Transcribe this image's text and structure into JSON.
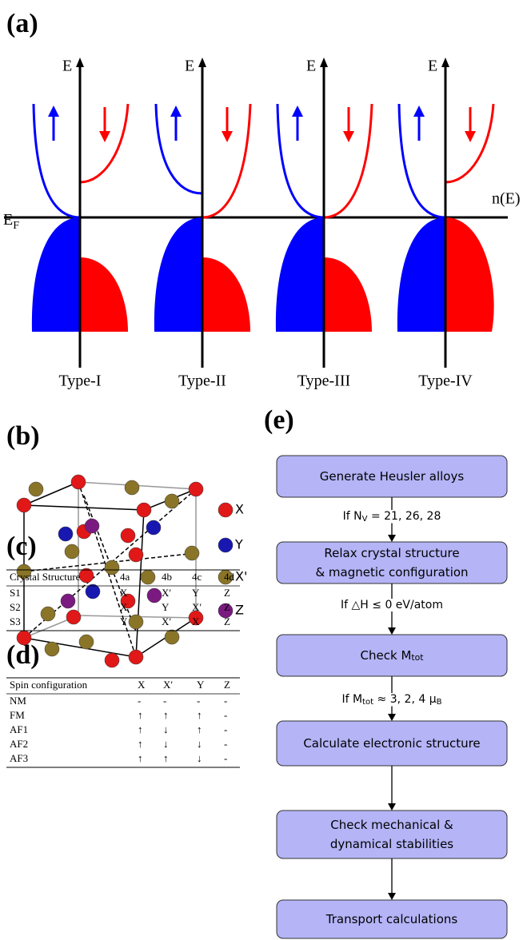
{
  "panel_labels": {
    "a": "(a)",
    "b": "(b)",
    "c": "(c)",
    "d": "(d)",
    "e": "(e)"
  },
  "dos": {
    "energy_axis_label": "E",
    "dos_axis_label": "n(E)",
    "fermi_label": {
      "main": "E",
      "sub": "F"
    },
    "types": [
      "Type-I",
      "Type-II",
      "Type-III",
      "Type-IV"
    ]
  },
  "structure": {
    "legend": [
      "X",
      "Y",
      "X'",
      "Z"
    ]
  },
  "table_c": {
    "header": [
      "Crystal Structure",
      "4a",
      "4b",
      "4c",
      "4d"
    ],
    "rows": [
      [
        "S1",
        "X",
        "X′",
        "Y",
        "Z"
      ],
      [
        "S2",
        "X",
        "Y",
        "X′",
        "Z"
      ],
      [
        "S3",
        "Y",
        "X′",
        "X",
        "Z"
      ]
    ]
  },
  "table_d": {
    "header": [
      "Spin configuration",
      "X",
      "X′",
      "Y",
      "Z"
    ],
    "rows": [
      [
        "NM",
        "-",
        "-",
        "-",
        "-"
      ],
      [
        "FM",
        "↑",
        "↑",
        "↑",
        "-"
      ],
      [
        "AF1",
        "↑",
        "↓",
        "↑",
        "-"
      ],
      [
        "AF2",
        "↑",
        "↓",
        "↓",
        "-"
      ],
      [
        "AF3",
        "↑",
        "↑",
        "↓",
        "-"
      ]
    ]
  },
  "flowchart": {
    "nodes": [
      {
        "lines": [
          [
            {
              "text": "Generate Heusler alloys"
            }
          ]
        ]
      },
      {
        "lines": [
          [
            {
              "text": "Relax crystal structure"
            }
          ],
          [
            {
              "text": "& magnetic configuration"
            }
          ]
        ]
      },
      {
        "lines": [
          [
            {
              "text": "Check M"
            },
            {
              "sub": "tot"
            }
          ]
        ]
      },
      {
        "lines": [
          [
            {
              "text": "Calculate electronic structure"
            }
          ]
        ]
      },
      {
        "lines": [
          [
            {
              "text": "Check mechanical &"
            }
          ],
          [
            {
              "text": "dynamical stabilities"
            }
          ]
        ]
      },
      {
        "lines": [
          [
            {
              "text": "Transport calculations"
            }
          ]
        ]
      }
    ],
    "edge_labels": [
      [
        {
          "text": "If N"
        },
        {
          "sub": "V"
        },
        {
          "text": " = 21, 26, 28"
        }
      ],
      [
        {
          "text": "If △H ≤ 0 eV/atom"
        }
      ],
      [
        {
          "text": "If M"
        },
        {
          "sub": "tot"
        },
        {
          "text": " ≈ 3, 2, 4 μ"
        },
        {
          "sub": "B"
        }
      ]
    ]
  }
}
